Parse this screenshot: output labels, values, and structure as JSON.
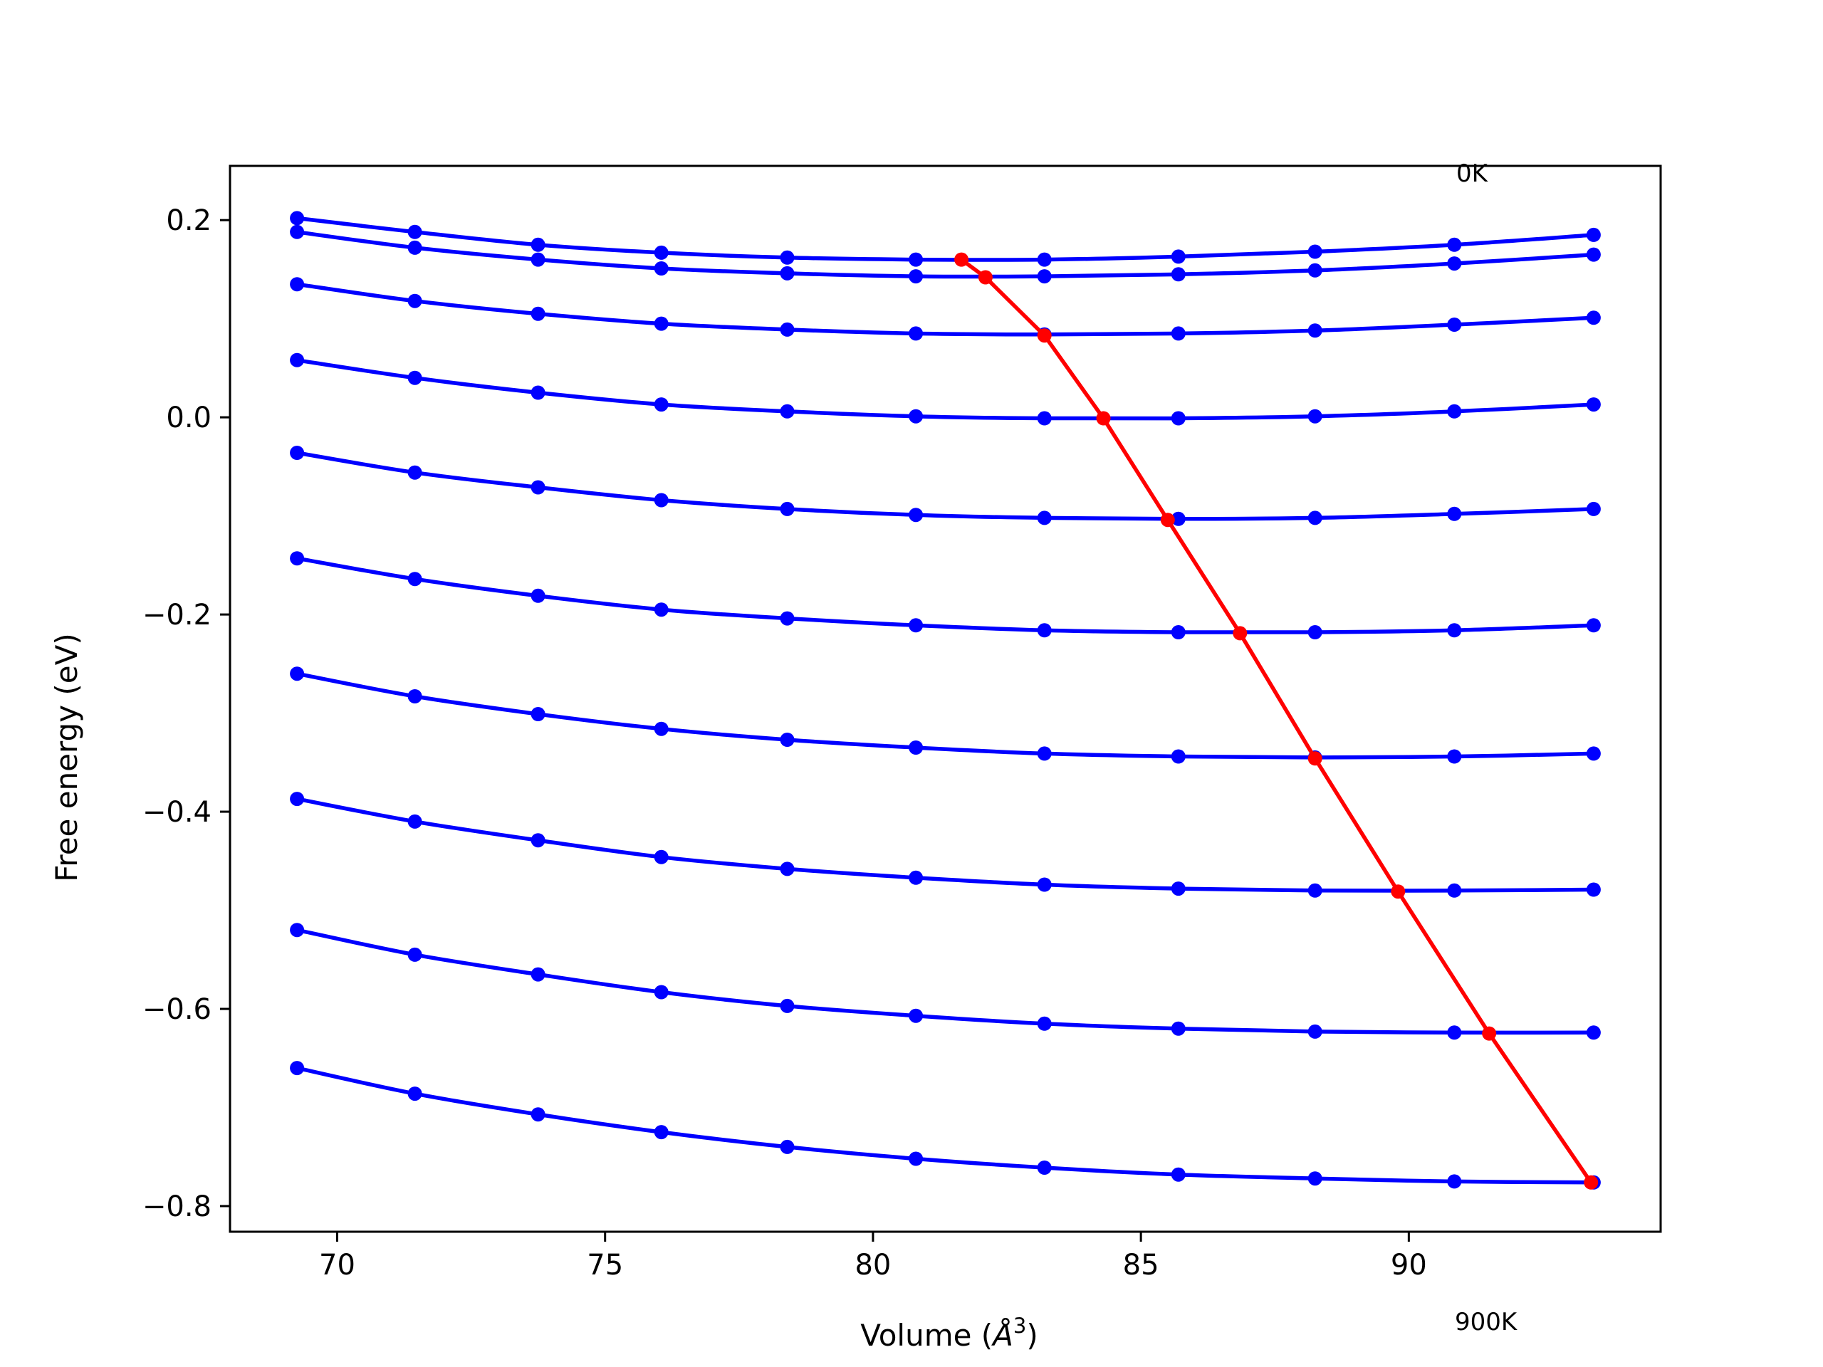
{
  "chart_data": {
    "type": "line",
    "xlabel": "Volume (Å³)",
    "xlabel_main": "Volume (",
    "xlabel_unit": "Å",
    "xlabel_sup": "3",
    "xlabel_close": ")",
    "ylabel": "Free energy (eV)",
    "xlim": [
      68.0,
      94.7
    ],
    "ylim": [
      -0.826,
      0.255
    ],
    "xticks": [
      70,
      75,
      80,
      85,
      90
    ],
    "xtick_labels": [
      "70",
      "75",
      "80",
      "85",
      "90"
    ],
    "yticks": [
      0.2,
      0.0,
      -0.2,
      -0.4,
      -0.6,
      -0.8
    ],
    "ytick_labels": [
      "0.2",
      "0.0",
      "−0.2",
      "−0.4",
      "−0.6",
      "−0.8"
    ],
    "annotations": {
      "top": "0K",
      "bottom": "900K"
    },
    "grid": false,
    "colors": {
      "isotherm": "#0000ff",
      "minimum": "#ff0000",
      "axes": "#000000"
    },
    "x": [
      69.25,
      71.45,
      73.75,
      76.05,
      78.4,
      80.8,
      83.2,
      85.7,
      88.25,
      90.85,
      93.45
    ],
    "series": [
      {
        "values": [
          0.202,
          0.188,
          0.175,
          0.167,
          0.162,
          0.16,
          0.16,
          0.163,
          0.168,
          0.175,
          0.185
        ]
      },
      {
        "values": [
          0.188,
          0.172,
          0.16,
          0.151,
          0.146,
          0.143,
          0.143,
          0.145,
          0.149,
          0.156,
          0.165
        ]
      },
      {
        "values": [
          0.135,
          0.118,
          0.105,
          0.095,
          0.089,
          0.085,
          0.084,
          0.085,
          0.088,
          0.094,
          0.101
        ]
      },
      {
        "values": [
          0.058,
          0.04,
          0.025,
          0.013,
          0.006,
          0.001,
          -0.001,
          -0.001,
          0.001,
          0.006,
          0.013
        ]
      },
      {
        "values": [
          -0.036,
          -0.056,
          -0.071,
          -0.084,
          -0.093,
          -0.099,
          -0.102,
          -0.103,
          -0.102,
          -0.098,
          -0.093
        ]
      },
      {
        "values": [
          -0.143,
          -0.164,
          -0.181,
          -0.195,
          -0.204,
          -0.211,
          -0.216,
          -0.218,
          -0.218,
          -0.216,
          -0.211
        ]
      },
      {
        "values": [
          -0.26,
          -0.283,
          -0.301,
          -0.316,
          -0.327,
          -0.335,
          -0.341,
          -0.344,
          -0.345,
          -0.344,
          -0.341
        ]
      },
      {
        "values": [
          -0.387,
          -0.41,
          -0.429,
          -0.446,
          -0.458,
          -0.467,
          -0.474,
          -0.478,
          -0.48,
          -0.48,
          -0.479
        ]
      },
      {
        "values": [
          -0.52,
          -0.545,
          -0.565,
          -0.583,
          -0.597,
          -0.607,
          -0.615,
          -0.62,
          -0.623,
          -0.624,
          -0.624
        ]
      },
      {
        "values": [
          -0.66,
          -0.686,
          -0.707,
          -0.725,
          -0.74,
          -0.752,
          -0.761,
          -0.768,
          -0.772,
          -0.775,
          -0.776
        ]
      }
    ],
    "minimum_curve": {
      "x": [
        81.65,
        82.1,
        83.2,
        84.3,
        85.5,
        86.85,
        88.25,
        89.8,
        91.5,
        93.4
      ],
      "y": [
        0.16,
        0.142,
        0.083,
        -0.001,
        -0.104,
        -0.219,
        -0.346,
        -0.481,
        -0.625,
        -0.776
      ]
    }
  }
}
